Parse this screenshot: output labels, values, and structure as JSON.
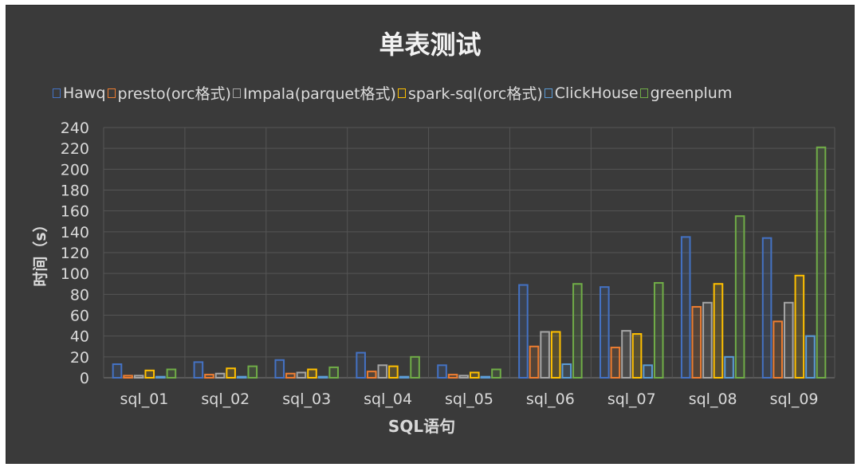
{
  "chart_data": {
    "type": "bar",
    "title": "单表测试",
    "xlabel": "SQL语句",
    "ylabel": "时间（s）",
    "ylim": [
      0,
      240
    ],
    "yticks": [
      0,
      20,
      40,
      60,
      80,
      100,
      120,
      140,
      160,
      180,
      200,
      220,
      240
    ],
    "grid": true,
    "legend_position": "top",
    "categories": [
      "sql_01",
      "sql_02",
      "sql_03",
      "sql_04",
      "sql_05",
      "sql_06",
      "sql_07",
      "sql_08",
      "sql_09"
    ],
    "series": [
      {
        "name": "Hawq",
        "color": "#4472c4",
        "values": [
          13,
          15,
          17,
          24,
          12,
          89,
          87,
          135,
          134
        ]
      },
      {
        "name": "presto(orc格式)",
        "color": "#ed7d31",
        "values": [
          2,
          3,
          4,
          6,
          3,
          30,
          29,
          68,
          54
        ]
      },
      {
        "name": "Impala(parquet格式)",
        "color": "#a5a5a5",
        "values": [
          2,
          4,
          5,
          12,
          2,
          44,
          45,
          72,
          72
        ]
      },
      {
        "name": "spark-sql(orc格式)",
        "color": "#ffc000",
        "values": [
          7,
          9,
          8,
          11,
          5,
          44,
          42,
          90,
          98
        ]
      },
      {
        "name": "ClickHouse",
        "color": "#5b9bd5",
        "values": [
          1,
          1,
          1,
          1,
          1,
          13,
          12,
          20,
          40
        ]
      },
      {
        "name": "greenplum",
        "color": "#70ad47",
        "values": [
          8,
          11,
          10,
          20,
          8,
          90,
          91,
          155,
          221
        ]
      }
    ]
  }
}
